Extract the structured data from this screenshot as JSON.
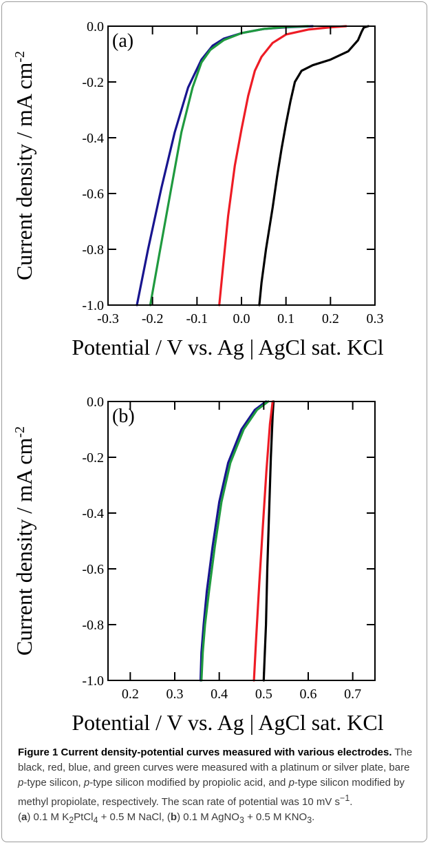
{
  "chart_data": [
    {
      "type": "line",
      "panel_label": "(a)",
      "xlabel": "Potential / V vs. Ag | AgCl sat. KCl",
      "ylabel": "Current density / mA cm",
      "ylabel_sup": "-2",
      "xlim": [
        -0.3,
        0.3
      ],
      "ylim": [
        -1.0,
        0.0
      ],
      "xticks": [
        -0.3,
        -0.2,
        -0.1,
        0.0,
        0.1,
        0.2,
        0.3
      ],
      "xtick_labels": [
        "-0.3",
        "-0.2",
        "-0.1",
        "0.0",
        "0.1",
        "0.2",
        "0.3"
      ],
      "yticks": [
        0.0,
        -0.2,
        -0.4,
        -0.6,
        -0.8,
        -1.0
      ],
      "ytick_labels": [
        "0.0",
        "-0.2",
        "-0.4",
        "-0.6",
        "-0.8",
        "-1.0"
      ],
      "grid": false,
      "series": [
        {
          "color": "#000000",
          "x": [
            0.285,
            0.275,
            0.27,
            0.262,
            0.24,
            0.2,
            0.16,
            0.135,
            0.12,
            0.11,
            0.1,
            0.09,
            0.08,
            0.07,
            0.055,
            0.045,
            0.04
          ],
          "y": [
            0.0,
            -0.005,
            -0.02,
            -0.05,
            -0.09,
            -0.12,
            -0.14,
            -0.16,
            -0.2,
            -0.27,
            -0.35,
            -0.44,
            -0.54,
            -0.65,
            -0.8,
            -0.92,
            -1.0
          ]
        },
        {
          "color": "#ee1c25",
          "x": [
            0.235,
            0.2,
            0.15,
            0.1,
            0.07,
            0.045,
            0.03,
            0.015,
            0.0,
            -0.015,
            -0.03,
            -0.04,
            -0.05
          ],
          "y": [
            0.0,
            -0.004,
            -0.012,
            -0.03,
            -0.06,
            -0.11,
            -0.16,
            -0.25,
            -0.37,
            -0.5,
            -0.68,
            -0.84,
            -1.0
          ]
        },
        {
          "color": "#18158f",
          "x": [
            0.16,
            0.1,
            0.05,
            0.0,
            -0.04,
            -0.065,
            -0.09,
            -0.12,
            -0.15,
            -0.18,
            -0.21,
            -0.235
          ],
          "y": [
            0.0,
            -0.004,
            -0.01,
            -0.025,
            -0.045,
            -0.07,
            -0.12,
            -0.22,
            -0.38,
            -0.58,
            -0.8,
            -1.0
          ]
        },
        {
          "color": "#1f9a3f",
          "x": [
            0.15,
            0.1,
            0.05,
            0.0,
            -0.04,
            -0.07,
            -0.09,
            -0.11,
            -0.135,
            -0.16,
            -0.185,
            -0.205
          ],
          "y": [
            0.0,
            -0.003,
            -0.01,
            -0.025,
            -0.05,
            -0.085,
            -0.13,
            -0.22,
            -0.38,
            -0.6,
            -0.82,
            -1.0
          ]
        }
      ]
    },
    {
      "type": "line",
      "panel_label": "(b)",
      "xlabel": "Potential / V vs. Ag | AgCl sat. KCl",
      "ylabel": "Current density / mA cm",
      "ylabel_sup": "-2",
      "xlim": [
        0.15,
        0.75
      ],
      "ylim": [
        -1.0,
        0.0
      ],
      "xticks": [
        0.2,
        0.3,
        0.4,
        0.5,
        0.6,
        0.7
      ],
      "xtick_labels": [
        "0.2",
        "0.3",
        "0.4",
        "0.5",
        "0.6",
        "0.7"
      ],
      "yticks": [
        0.0,
        -0.2,
        -0.4,
        -0.6,
        -0.8,
        -1.0
      ],
      "ytick_labels": [
        "0.0",
        "-0.2",
        "-0.4",
        "-0.6",
        "-0.8",
        "-1.0"
      ],
      "grid": false,
      "series": [
        {
          "color": "#000000",
          "x": [
            0.522,
            0.52,
            0.516,
            0.512,
            0.508,
            0.505,
            0.502,
            0.5
          ],
          "y": [
            0.0,
            -0.05,
            -0.2,
            -0.4,
            -0.6,
            -0.8,
            -0.92,
            -1.0
          ]
        },
        {
          "color": "#ee1c25",
          "x": [
            0.52,
            0.514,
            0.506,
            0.498,
            0.49,
            0.483,
            0.478
          ],
          "y": [
            0.0,
            -0.08,
            -0.25,
            -0.45,
            -0.65,
            -0.85,
            -1.0
          ]
        },
        {
          "color": "#18158f",
          "x": [
            0.505,
            0.48,
            0.45,
            0.42,
            0.4,
            0.385,
            0.372,
            0.365,
            0.36,
            0.358
          ],
          "y": [
            0.0,
            -0.03,
            -0.1,
            -0.22,
            -0.36,
            -0.52,
            -0.68,
            -0.8,
            -0.9,
            -1.0
          ]
        },
        {
          "color": "#1f9a3f",
          "x": [
            0.51,
            0.485,
            0.455,
            0.425,
            0.405,
            0.39,
            0.377,
            0.368,
            0.363,
            0.36
          ],
          "y": [
            0.0,
            -0.03,
            -0.1,
            -0.22,
            -0.36,
            -0.52,
            -0.68,
            -0.8,
            -0.9,
            -1.0
          ]
        }
      ]
    }
  ],
  "caption": {
    "title": "Figure 1 Current density-potential curves measured with various electrodes.",
    "s1": " The black, red, blue, and green curves were measured with a platinum or silver plate, bare ",
    "p": "p",
    "s2": "-type silicon, ",
    "s3": "-type silicon modified by propiolic acid, and ",
    "s4": "-type silicon modified by methyl propiolate, respectively. The scan rate of potential was 10 mV s",
    "s4_sup": "−1",
    "s5": ".",
    "a": "a",
    "s6": ") 0.1 M K",
    "sub2": "2",
    "s7": "PtCl",
    "sub4": "4",
    "s8": " + 0.5 M NaCl, (",
    "b": "b",
    "s9": ") 0.1 M AgNO",
    "sub3": "3",
    "s10": " + 0.5 M KNO",
    "s11": "."
  }
}
